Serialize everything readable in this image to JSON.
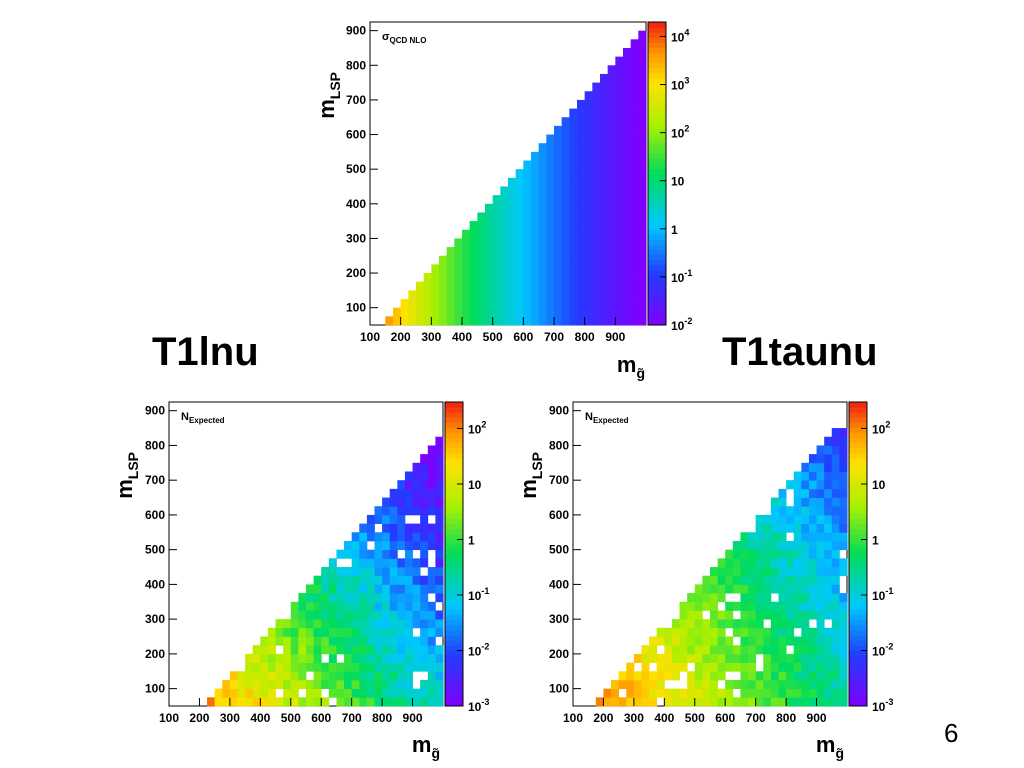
{
  "slide": {
    "titles": {
      "left": "T1lnu",
      "right": "T1taunu"
    },
    "page_number": "6"
  },
  "chart_data": [
    {
      "type": "heatmap",
      "quantity": "σ_QCD NLO",
      "plot_label": {
        "main": "σ",
        "sub": "QCD NLO"
      },
      "xlabel": {
        "main": "m",
        "sub": "g̃"
      },
      "ylabel": {
        "main": "m",
        "sub": "LSP"
      },
      "xlim": [
        100,
        1000
      ],
      "ylim": [
        50,
        925
      ],
      "x_ticks": [
        100,
        200,
        300,
        400,
        500,
        600,
        700,
        800,
        900
      ],
      "y_ticks": [
        100,
        200,
        300,
        400,
        500,
        600,
        700,
        800,
        900
      ],
      "bin_width": 25,
      "z_scale": "log",
      "z_range": [
        0.01,
        20000
      ],
      "colorbar_ticks": [
        {
          "base": "10",
          "exp": "-2"
        },
        {
          "base": "10",
          "exp": "-1"
        },
        {
          "base": "1",
          "exp": ""
        },
        {
          "base": "10",
          "exp": ""
        },
        {
          "base": "10",
          "exp": "2"
        },
        {
          "base": "10",
          "exp": "3"
        },
        {
          "base": "10",
          "exp": "4"
        }
      ],
      "colorbar_tick_values": [
        0.01,
        0.1,
        1,
        10,
        100,
        1000,
        10000
      ],
      "x_centers": [
        112.5,
        137.5,
        162.5,
        187.5,
        212.5,
        237.5,
        262.5,
        287.5,
        312.5,
        337.5,
        362.5,
        387.5,
        412.5,
        437.5,
        462.5,
        487.5,
        512.5,
        537.5,
        562.5,
        587.5,
        612.5,
        637.5,
        662.5,
        687.5,
        712.5,
        737.5,
        762.5,
        787.5,
        812.5,
        837.5,
        862.5,
        887.5,
        912.5,
        937.5,
        962.5,
        987.5
      ],
      "xsec_vs_mgluino": [
        14000,
        8000,
        4000,
        2000,
        1100,
        600,
        350,
        210,
        130,
        80,
        50,
        32,
        21,
        14,
        9.3,
        6.2,
        4.2,
        2.9,
        2,
        1.4,
        0.95,
        0.68,
        0.48,
        0.35,
        0.25,
        0.18,
        0.13,
        0.095,
        0.07,
        0.051,
        0.038,
        0.028,
        0.021,
        0.016,
        0.012,
        0.009
      ],
      "fill_rule": "filled for m_LSP < m_gluino - 75 (full triangle)"
    },
    {
      "type": "heatmap",
      "title": "T1lnu",
      "quantity": "N_Expected",
      "plot_label": {
        "main": "N",
        "sub": "Expected"
      },
      "xlabel": {
        "main": "m",
        "sub": "g̃"
      },
      "ylabel": {
        "main": "m",
        "sub": "LSP"
      },
      "xlim": [
        100,
        1000
      ],
      "ylim": [
        50,
        925
      ],
      "x_ticks": [
        100,
        200,
        300,
        400,
        500,
        600,
        700,
        800,
        900
      ],
      "y_ticks": [
        100,
        200,
        300,
        400,
        500,
        600,
        700,
        800,
        900
      ],
      "z_scale": "log",
      "z_range": [
        0.001,
        300
      ],
      "colorbar_ticks": [
        {
          "base": "10",
          "exp": "-3"
        },
        {
          "base": "10",
          "exp": "-2"
        },
        {
          "base": "10",
          "exp": "-1"
        },
        {
          "base": "1",
          "exp": ""
        },
        {
          "base": "10",
          "exp": ""
        },
        {
          "base": "10",
          "exp": "2"
        }
      ],
      "colorbar_tick_values": [
        0.001,
        0.01,
        0.1,
        1,
        10,
        100
      ],
      "trend": "approx. 100 at m_gluino≈250, m_LSP≈75; ~1–3 across mid mass; ~0.005–0.05 near m_gluino≈900, m_LSP≈800; sparse missing bins",
      "example_bins": [
        {
          "m_gluino": 237.5,
          "m_LSP": 75,
          "N": 100
        },
        {
          "m_gluino": 500,
          "m_LSP": 150,
          "N": 1.5
        },
        {
          "m_gluino": 750,
          "m_LSP": 300,
          "N": 0.6
        },
        {
          "m_gluino": 900,
          "m_LSP": 600,
          "N": 0.02
        },
        {
          "m_gluino": 975,
          "m_LSP": 850,
          "N": 0.004
        }
      ]
    },
    {
      "type": "heatmap",
      "title": "T1taunu",
      "quantity": "N_Expected",
      "plot_label": {
        "main": "N",
        "sub": "Expected"
      },
      "xlabel": {
        "main": "m",
        "sub": "g̃"
      },
      "ylabel": {
        "main": "m",
        "sub": "LSP"
      },
      "xlim": [
        100,
        1000
      ],
      "ylim": [
        50,
        925
      ],
      "x_ticks": [
        100,
        200,
        300,
        400,
        500,
        600,
        700,
        800,
        900
      ],
      "y_ticks": [
        100,
        200,
        300,
        400,
        500,
        600,
        700,
        800,
        900
      ],
      "z_scale": "log",
      "z_range": [
        0.001,
        300
      ],
      "colorbar_ticks": [
        {
          "base": "10",
          "exp": "-3"
        },
        {
          "base": "10",
          "exp": "-2"
        },
        {
          "base": "10",
          "exp": "-1"
        },
        {
          "base": "1",
          "exp": ""
        },
        {
          "base": "10",
          "exp": ""
        },
        {
          "base": "10",
          "exp": "2"
        }
      ],
      "colorbar_tick_values": [
        0.001,
        0.01,
        0.1,
        1,
        10,
        100
      ],
      "trend": "approx. 100 at m_gluino≈200, m_LSP≈75–125; ~5–20 around m_gluino 300–450; ~0.3 near m_gluino≈900, m_LSP≈700; ~0.02 near the top; sparse missing bins",
      "example_bins": [
        {
          "m_gluino": 175,
          "m_LSP": 100,
          "N": 100
        },
        {
          "m_gluino": 400,
          "m_LSP": 150,
          "N": 8
        },
        {
          "m_gluino": 700,
          "m_LSP": 300,
          "N": 1.5
        },
        {
          "m_gluino": 900,
          "m_LSP": 650,
          "N": 0.3
        },
        {
          "m_gluino": 950,
          "m_LSP": 875,
          "N": 0.01
        }
      ]
    }
  ]
}
